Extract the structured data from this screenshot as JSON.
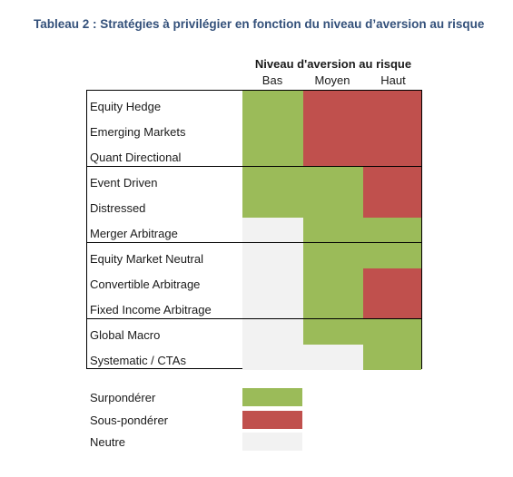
{
  "title": "Tableau 2 : Stratégies à privilégier en fonction du niveau d’aversion au risque",
  "header": {
    "main": "Niveau d'aversion au risque",
    "columns": [
      "Bas",
      "Moyen",
      "Haut"
    ]
  },
  "colors": {
    "surponderer": "#9bbb59",
    "sous_ponderer": "#c0504d",
    "neutre": "#f2f2f2"
  },
  "rows": [
    {
      "label": "Equity Hedge",
      "levels": [
        "surponderer",
        "sous_ponderer",
        "sous_ponderer"
      ]
    },
    {
      "label": "Emerging Markets",
      "levels": [
        "surponderer",
        "sous_ponderer",
        "sous_ponderer"
      ]
    },
    {
      "label": "Quant Directional",
      "levels": [
        "surponderer",
        "sous_ponderer",
        "sous_ponderer"
      ]
    },
    {
      "label": "Event Driven",
      "levels": [
        "surponderer",
        "surponderer",
        "sous_ponderer"
      ]
    },
    {
      "label": "Distressed",
      "levels": [
        "surponderer",
        "surponderer",
        "sous_ponderer"
      ]
    },
    {
      "label": "Merger Arbitrage",
      "levels": [
        "neutre",
        "surponderer",
        "surponderer"
      ]
    },
    {
      "label": "Equity Market Neutral",
      "levels": [
        "neutre",
        "surponderer",
        "surponderer"
      ]
    },
    {
      "label": "Convertible Arbitrage",
      "levels": [
        "neutre",
        "surponderer",
        "sous_ponderer"
      ]
    },
    {
      "label": "Fixed Income Arbitrage",
      "levels": [
        "neutre",
        "surponderer",
        "sous_ponderer"
      ]
    },
    {
      "label": "Global Macro",
      "levels": [
        "neutre",
        "surponderer",
        "surponderer"
      ]
    },
    {
      "label": "Systematic / CTAs",
      "levels": [
        "neutre",
        "neutre",
        "surponderer"
      ]
    }
  ],
  "group_separators_after_rows": [
    3,
    6,
    9
  ],
  "legend": [
    {
      "label": "Surpondérer",
      "level": "surponderer"
    },
    {
      "label": "Sous-pondérer",
      "level": "sous_ponderer"
    },
    {
      "label": "Neutre",
      "level": "neutre"
    }
  ]
}
